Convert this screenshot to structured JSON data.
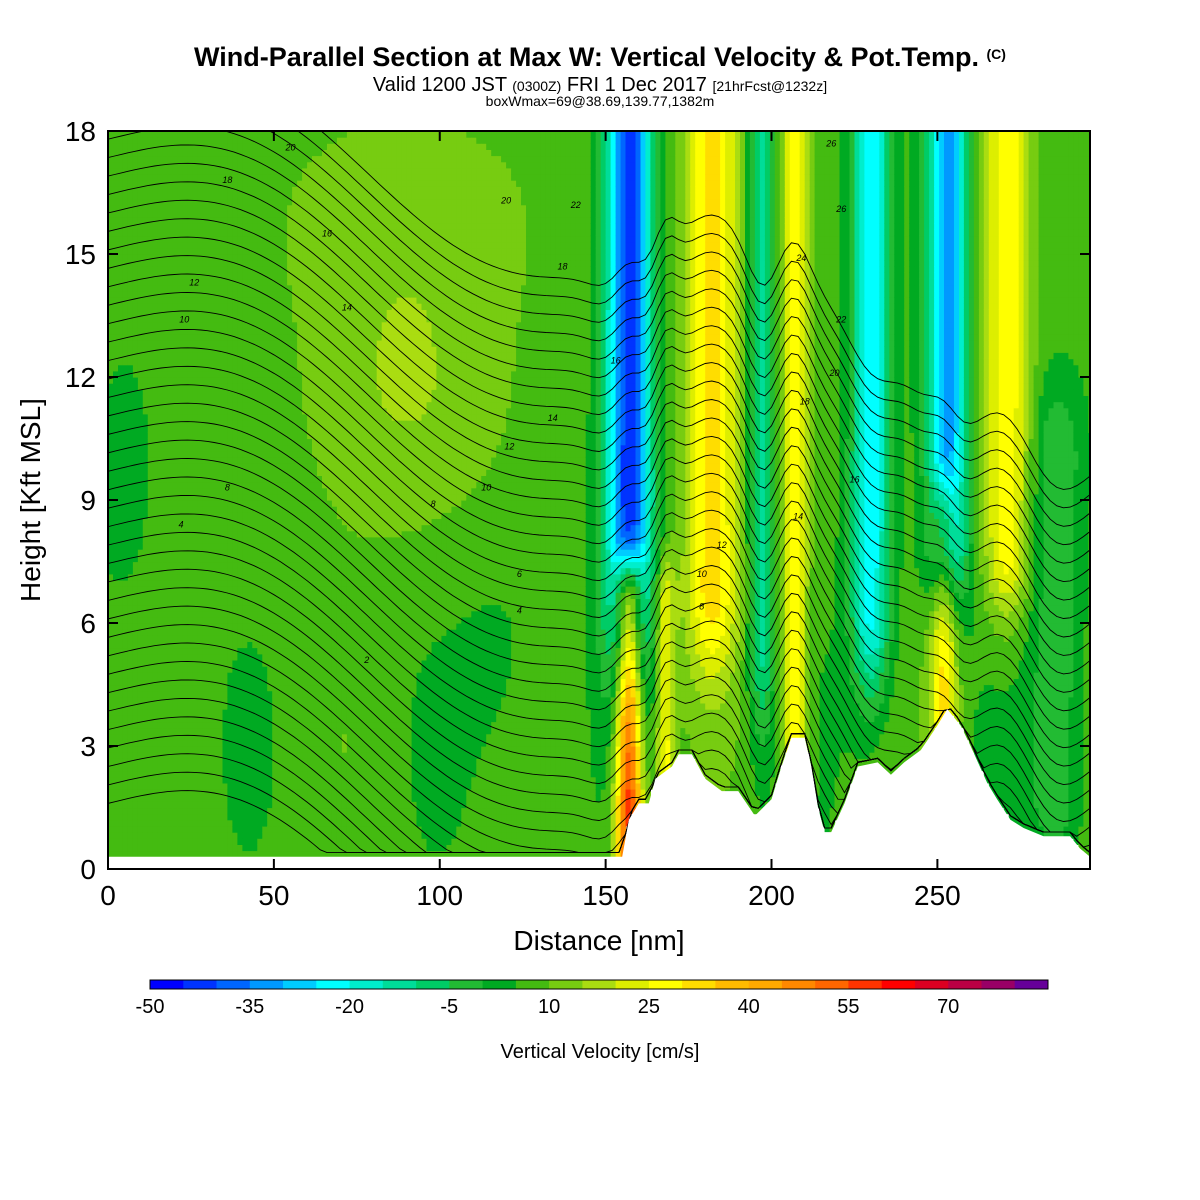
{
  "header": {
    "title": "Wind-Parallel Section at Max W: Vertical Velocity & Pot.Temp.",
    "copyright": "(C)",
    "valid_prefix": "Valid 1200 JST",
    "valid_utc": "(0300Z)",
    "valid_date": "FRI 1 Dec 2017",
    "forecast_info": "[21hrFcst@1232z]",
    "subtitle": "boxWmax=69@38.69,139.77,1382m"
  },
  "colors": {
    "background": "#ffffff",
    "colorbar": [
      "#0000ff",
      "#0033ff",
      "#0066ff",
      "#0099ff",
      "#00ccff",
      "#00ffff",
      "#00eecc",
      "#00dd99",
      "#00cc66",
      "#22bb33",
      "#00aa22",
      "#44bb11",
      "#77cc11",
      "#aadd11",
      "#ddee00",
      "#ffff00",
      "#ffdd00",
      "#ffbb00",
      "#ffaa00",
      "#ff8800",
      "#ff6600",
      "#ff3300",
      "#ff0000",
      "#dd0022",
      "#bb0044",
      "#990066",
      "#660099"
    ]
  },
  "chart_data": {
    "type": "heatmap",
    "description_fields_only": "cross-section of vertical velocity (filled) with potential temperature contours",
    "xlabel": "Distance [nm]",
    "ylabel": "Height [Kft MSL]",
    "xlim": [
      0,
      296
    ],
    "ylim": [
      0,
      18
    ],
    "xticks": [
      0,
      50,
      100,
      150,
      200,
      250
    ],
    "yticks": [
      0,
      3,
      6,
      9,
      12,
      15,
      18
    ],
    "grid": false,
    "colorbar": {
      "label": "Vertical Velocity [cm/s]",
      "levels": [
        -50,
        -45,
        -40,
        -35,
        -30,
        -25,
        -20,
        -15,
        -10,
        -5,
        0,
        5,
        10,
        15,
        20,
        25,
        30,
        35,
        40,
        45,
        50,
        55,
        60,
        65,
        70,
        75
      ],
      "tick_labels": [
        "-50",
        "-35",
        "-20",
        "-5",
        "10",
        "25",
        "40",
        "55",
        "70"
      ]
    },
    "terrain": [
      [
        150,
        0.3
      ],
      [
        155,
        0.3
      ],
      [
        157,
        1.2
      ],
      [
        160,
        1.6
      ],
      [
        163,
        1.6
      ],
      [
        165,
        2.2
      ],
      [
        170,
        2.5
      ],
      [
        172,
        2.8
      ],
      [
        176,
        2.8
      ],
      [
        180,
        2.2
      ],
      [
        185,
        1.9
      ],
      [
        190,
        1.9
      ],
      [
        195,
        1.3
      ],
      [
        200,
        1.7
      ],
      [
        203,
        2.5
      ],
      [
        206,
        3.2
      ],
      [
        210,
        3.2
      ],
      [
        212,
        2.5
      ],
      [
        214,
        1.5
      ],
      [
        216,
        0.9
      ],
      [
        218,
        0.9
      ],
      [
        222,
        1.6
      ],
      [
        226,
        2.5
      ],
      [
        232,
        2.6
      ],
      [
        236,
        2.3
      ],
      [
        240,
        2.6
      ],
      [
        245,
        2.9
      ],
      [
        250,
        3.5
      ],
      [
        253,
        3.9
      ],
      [
        257,
        3.5
      ],
      [
        260,
        3.0
      ],
      [
        265,
        2.1
      ],
      [
        268,
        1.7
      ],
      [
        272,
        1.2
      ],
      [
        276,
        1.0
      ],
      [
        282,
        0.8
      ],
      [
        290,
        0.8
      ],
      [
        293,
        0.5
      ],
      [
        296,
        0.3
      ]
    ],
    "jets": [
      {
        "x": 157,
        "width": 4,
        "vmax": 55,
        "sign": 1,
        "zmin": 0,
        "zmax": 6.6,
        "fade": 1.0
      },
      {
        "x": 157,
        "width": 7,
        "vmax": 50,
        "sign": -1,
        "zmin": 7.5,
        "zmax": 18,
        "fade": 3.5
      },
      {
        "x": 168,
        "width": 3,
        "vmax": 20,
        "sign": 1,
        "zmin": 0,
        "zmax": 6.5,
        "fade": 1.2
      },
      {
        "x": 182,
        "width": 8,
        "vmax": 25,
        "sign": 1,
        "zmin": 7,
        "zmax": 18,
        "fade": 2.5
      },
      {
        "x": 197,
        "width": 4,
        "vmax": 20,
        "sign": -1,
        "zmin": 6,
        "zmax": 18,
        "fade": 3
      },
      {
        "x": 207,
        "width": 4,
        "vmax": 22,
        "sign": 1,
        "zmin": 3,
        "zmax": 18,
        "fade": 1.5
      },
      {
        "x": 230,
        "width": 6,
        "vmax": 30,
        "sign": -1,
        "zmin": 6.5,
        "zmax": 18,
        "fade": 2.5
      },
      {
        "x": 253,
        "width": 6,
        "vmax": 40,
        "sign": -1,
        "zmin": 8.3,
        "zmax": 18,
        "fade": 2
      },
      {
        "x": 252,
        "width": 4,
        "vmax": 25,
        "sign": 1,
        "zmin": 4,
        "zmax": 8.3,
        "fade": 1.2
      },
      {
        "x": 271,
        "width": 7,
        "vmax": 22,
        "sign": 1,
        "zmin": 8,
        "zmax": 18,
        "fade": 2
      },
      {
        "x": 286,
        "width": 8,
        "vmax": 12,
        "sign": -1,
        "zmin": 2,
        "zmax": 10,
        "fade": 2
      }
    ],
    "pot_temp_labels": [
      {
        "label": "20",
        "x": 55,
        "z": 17.6
      },
      {
        "label": "18",
        "x": 36,
        "z": 16.8
      },
      {
        "label": "16",
        "x": 66,
        "z": 15.5
      },
      {
        "label": "12",
        "x": 26,
        "z": 14.3
      },
      {
        "label": "10",
        "x": 23,
        "z": 13.4
      },
      {
        "label": "14",
        "x": 72,
        "z": 13.7
      },
      {
        "label": "20",
        "x": 120,
        "z": 16.3
      },
      {
        "label": "22",
        "x": 141,
        "z": 16.2
      },
      {
        "label": "18",
        "x": 137,
        "z": 14.7
      },
      {
        "label": "16",
        "x": 153,
        "z": 12.4
      },
      {
        "label": "14",
        "x": 134,
        "z": 11.0
      },
      {
        "label": "12",
        "x": 121,
        "z": 10.3
      },
      {
        "label": "10",
        "x": 114,
        "z": 9.3
      },
      {
        "label": "8",
        "x": 98,
        "z": 8.9
      },
      {
        "label": "8",
        "x": 36,
        "z": 9.3
      },
      {
        "label": "4",
        "x": 22,
        "z": 8.4
      },
      {
        "label": "6",
        "x": 124,
        "z": 7.2
      },
      {
        "label": "4",
        "x": 124,
        "z": 6.3
      },
      {
        "label": "2",
        "x": 78,
        "z": 5.1
      },
      {
        "label": "26",
        "x": 218,
        "z": 17.7
      },
      {
        "label": "26",
        "x": 221,
        "z": 16.1
      },
      {
        "label": "24",
        "x": 209,
        "z": 14.9
      },
      {
        "label": "22",
        "x": 221,
        "z": 13.4
      },
      {
        "label": "20",
        "x": 219,
        "z": 12.1
      },
      {
        "label": "18",
        "x": 210,
        "z": 11.4
      },
      {
        "label": "16",
        "x": 225,
        "z": 9.5
      },
      {
        "label": "14",
        "x": 208,
        "z": 8.6
      },
      {
        "label": "12",
        "x": 185,
        "z": 7.9
      },
      {
        "label": "10",
        "x": 179,
        "z": 7.2
      },
      {
        "label": "8",
        "x": 179,
        "z": 6.4
      }
    ]
  }
}
